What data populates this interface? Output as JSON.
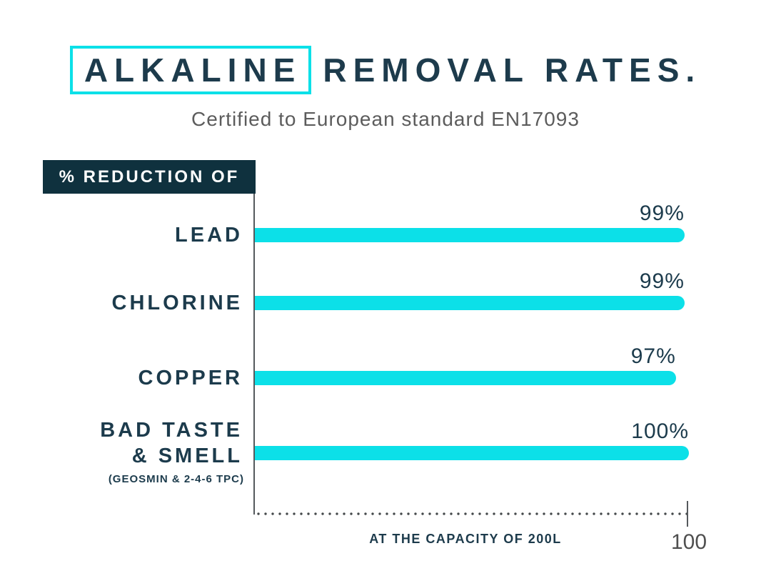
{
  "header": {
    "boxed_word": "ALKALINE",
    "rest_of_title": "REMOVAL RATES.",
    "subtitle": "Certified to European standard EN17093"
  },
  "chart_data": {
    "type": "bar",
    "orientation": "horizontal",
    "title": "ALKALINE REMOVAL RATES.",
    "subtitle": "Certified to European standard EN17093",
    "y_header": "% REDUCTION OF",
    "categories": [
      "LEAD",
      "CHLORINE",
      "COPPER",
      "BAD TASTE & SMELL"
    ],
    "category_note": "(GEOSMIN & 2-4-6 TPC)",
    "category_note_applies_to": "BAD TASTE & SMELL",
    "values": [
      99,
      99,
      97,
      100
    ],
    "value_labels": [
      "99%",
      "99%",
      "97%",
      "100%"
    ],
    "xlim": [
      0,
      100
    ],
    "x_axis_max_label": "100",
    "x_axis_caption": "AT THE CAPACITY OF 200L",
    "grid": false,
    "legend": false,
    "bar_color": "#0CE0E8",
    "label_color": "#1C3B4C"
  },
  "colors": {
    "accent_cyan": "#0CE0E8",
    "dark_navy_text": "#1C3B4C",
    "y_header_box_bg": "#0F313E",
    "subtitle_gray": "#5C5C5C",
    "axis_gray": "#4F4F4F",
    "background": "#FFFFFF"
  }
}
